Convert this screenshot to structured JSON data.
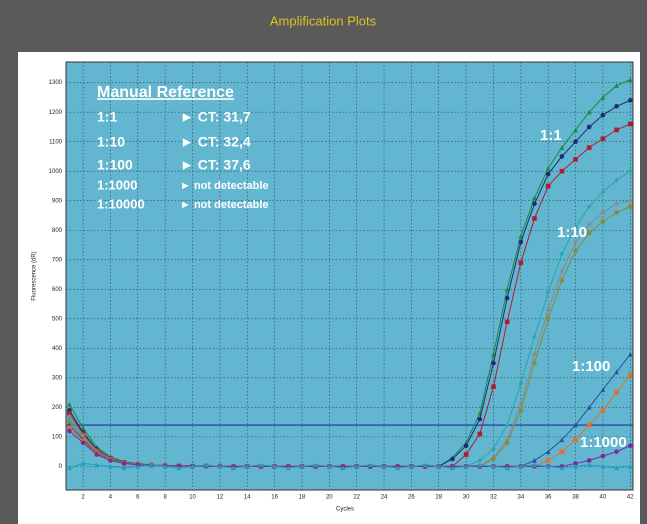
{
  "chart_data": {
    "type": "line",
    "title": "Amplification Plots",
    "x_label": "Cycles",
    "y_label": "Fluorescence (dR)",
    "xlim": [
      0.75,
      42.2
    ],
    "ylim": [
      -80,
      1370
    ],
    "xticks": [
      2,
      4,
      6,
      8,
      10,
      12,
      14,
      16,
      18,
      20,
      22,
      24,
      26,
      28,
      30,
      32,
      34,
      36,
      38,
      40,
      42
    ],
    "yticks": [
      0,
      100,
      200,
      300,
      400,
      500,
      600,
      700,
      800,
      900,
      1000,
      1100,
      1200,
      1300
    ],
    "grid": true,
    "threshold": 140,
    "threshold_color": "#1f2fa0",
    "x": [
      1,
      2,
      3,
      4,
      5,
      6,
      7,
      8,
      9,
      10,
      11,
      12,
      13,
      14,
      15,
      16,
      17,
      18,
      19,
      20,
      21,
      22,
      23,
      24,
      25,
      26,
      27,
      28,
      29,
      30,
      31,
      32,
      33,
      34,
      35,
      36,
      37,
      38,
      39,
      40,
      41,
      42
    ],
    "series": [
      {
        "color": "#1a8a3a",
        "marker": "triangle",
        "values": [
          210,
          130,
          65,
          32,
          16,
          9,
          5,
          3,
          2,
          2,
          1,
          1,
          0,
          0,
          0,
          0,
          0,
          0,
          0,
          0,
          0,
          0,
          0,
          0,
          0,
          0,
          0,
          0,
          30,
          80,
          180,
          380,
          600,
          780,
          910,
          1010,
          1080,
          1140,
          1200,
          1250,
          1290,
          1310
        ]
      },
      {
        "color": "#1f2a7a",
        "marker": "circle",
        "values": [
          190,
          115,
          58,
          28,
          14,
          8,
          5,
          3,
          2,
          2,
          1,
          1,
          0,
          0,
          0,
          0,
          0,
          0,
          0,
          0,
          0,
          0,
          0,
          0,
          0,
          0,
          0,
          0,
          25,
          70,
          160,
          350,
          570,
          760,
          890,
          990,
          1050,
          1100,
          1150,
          1190,
          1220,
          1240
        ]
      },
      {
        "color": "#b01c2e",
        "marker": "square",
        "values": [
          180,
          110,
          55,
          27,
          13,
          7,
          4,
          3,
          2,
          2,
          1,
          1,
          0,
          0,
          0,
          0,
          0,
          0,
          0,
          0,
          0,
          0,
          0,
          0,
          0,
          0,
          0,
          0,
          0,
          40,
          110,
          270,
          490,
          690,
          840,
          950,
          1000,
          1040,
          1080,
          1110,
          1140,
          1160
        ]
      },
      {
        "color": "#2aa6a6",
        "marker": "diamond",
        "values": [
          160,
          100,
          50,
          25,
          12,
          7,
          4,
          3,
          2,
          2,
          1,
          1,
          0,
          0,
          0,
          0,
          0,
          0,
          0,
          0,
          0,
          0,
          0,
          0,
          0,
          0,
          0,
          0,
          0,
          0,
          20,
          60,
          140,
          280,
          440,
          590,
          720,
          810,
          880,
          930,
          970,
          1000
        ]
      },
      {
        "color": "#8a8a8a",
        "marker": "diamond",
        "values": [
          170,
          105,
          52,
          26,
          13,
          7,
          4,
          3,
          2,
          2,
          1,
          1,
          0,
          0,
          0,
          0,
          0,
          0,
          0,
          0,
          0,
          0,
          0,
          0,
          0,
          0,
          0,
          0,
          0,
          0,
          0,
          30,
          90,
          210,
          380,
          530,
          660,
          760,
          820,
          860,
          890,
          900
        ]
      },
      {
        "color": "#8a8a3a",
        "marker": "circle",
        "values": [
          150,
          95,
          48,
          24,
          12,
          6,
          4,
          3,
          2,
          2,
          1,
          1,
          0,
          0,
          0,
          0,
          0,
          0,
          0,
          0,
          0,
          0,
          0,
          0,
          0,
          0,
          0,
          0,
          0,
          0,
          0,
          25,
          80,
          190,
          350,
          500,
          630,
          730,
          790,
          830,
          860,
          880
        ]
      },
      {
        "color": "#2a4fa0",
        "marker": "triangle",
        "values": [
          140,
          90,
          45,
          22,
          11,
          6,
          4,
          3,
          2,
          2,
          1,
          1,
          0,
          0,
          0,
          0,
          0,
          0,
          0,
          0,
          0,
          0,
          0,
          0,
          0,
          0,
          0,
          0,
          0,
          0,
          0,
          0,
          0,
          0,
          20,
          50,
          90,
          140,
          200,
          260,
          320,
          380
        ]
      },
      {
        "color": "#e07030",
        "marker": "square",
        "values": [
          130,
          85,
          42,
          21,
          10,
          6,
          4,
          3,
          2,
          2,
          1,
          1,
          0,
          0,
          0,
          0,
          0,
          0,
          0,
          0,
          0,
          0,
          0,
          0,
          0,
          0,
          0,
          0,
          0,
          0,
          0,
          0,
          0,
          0,
          0,
          20,
          50,
          90,
          140,
          190,
          250,
          310
        ]
      },
      {
        "color": "#7a2a9a",
        "marker": "circle",
        "values": [
          120,
          80,
          40,
          20,
          10,
          5,
          3,
          2,
          2,
          1,
          1,
          0,
          0,
          0,
          0,
          0,
          0,
          0,
          0,
          0,
          0,
          0,
          0,
          0,
          0,
          0,
          0,
          0,
          0,
          0,
          0,
          0,
          0,
          0,
          0,
          0,
          0,
          10,
          20,
          35,
          50,
          70
        ]
      },
      {
        "color": "#1aa0c0",
        "marker": "triangle",
        "values": [
          -5,
          10,
          5,
          0,
          -5,
          0,
          5,
          0,
          -5,
          0,
          5,
          0,
          -5,
          0,
          5,
          0,
          -5,
          0,
          5,
          0,
          -5,
          0,
          5,
          0,
          -5,
          0,
          5,
          0,
          -5,
          0,
          5,
          0,
          -5,
          0,
          5,
          0,
          -5,
          0,
          5,
          0,
          -5,
          0
        ]
      }
    ],
    "reference": {
      "title": "Manual Reference",
      "rows": [
        {
          "dilution": "1:1",
          "result": "► CT: 31,7"
        },
        {
          "dilution": "1:10",
          "result": "► CT: 32,4"
        },
        {
          "dilution": "1:100",
          "result": "► CT: 37,6"
        },
        {
          "dilution": "1:1000",
          "result": "► not detectable"
        },
        {
          "dilution": "1:10000",
          "result": "► not detectable"
        }
      ]
    },
    "curve_labels": [
      "1:1",
      "1:10",
      "1:100",
      "1:1000"
    ]
  }
}
